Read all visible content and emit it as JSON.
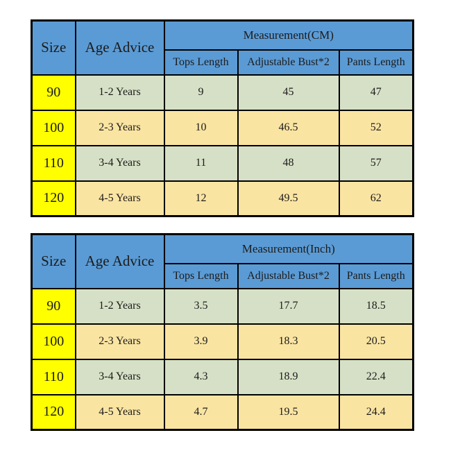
{
  "colors": {
    "header_blue": "#5b9bd5",
    "size_column_yellow": "#ffff00",
    "row_green": "#d6e0c6",
    "row_tan": "#fae4a2",
    "border_black": "#000000",
    "background": "#ffffff"
  },
  "chart_data": [
    {
      "type": "table",
      "title": "Measurement(CM)",
      "unit": "CM",
      "size_label": "Size",
      "age_label": "Age Advice",
      "columns": [
        "Tops Length",
        "Adjustable Bust*2",
        "Pants Length"
      ],
      "rows": [
        {
          "size": "90",
          "age": "1-2 Years",
          "tops": "9",
          "bust": "45",
          "pants": "47"
        },
        {
          "size": "100",
          "age": "2-3 Years",
          "tops": "10",
          "bust": "46.5",
          "pants": "52"
        },
        {
          "size": "110",
          "age": "3-4 Years",
          "tops": "11",
          "bust": "48",
          "pants": "57"
        },
        {
          "size": "120",
          "age": "4-5 Years",
          "tops": "12",
          "bust": "49.5",
          "pants": "62"
        }
      ]
    },
    {
      "type": "table",
      "title": "Measurement(Inch)",
      "unit": "Inch",
      "size_label": "Size",
      "age_label": "Age Advice",
      "columns": [
        "Tops Length",
        "Adjustable Bust*2",
        "Pants Length"
      ],
      "rows": [
        {
          "size": "90",
          "age": "1-2 Years",
          "tops": "3.5",
          "bust": "17.7",
          "pants": "18.5"
        },
        {
          "size": "100",
          "age": "2-3 Years",
          "tops": "3.9",
          "bust": "18.3",
          "pants": "20.5"
        },
        {
          "size": "110",
          "age": "3-4 Years",
          "tops": "4.3",
          "bust": "18.9",
          "pants": "22.4"
        },
        {
          "size": "120",
          "age": "4-5 Years",
          "tops": "4.7",
          "bust": "19.5",
          "pants": "24.4"
        }
      ]
    }
  ]
}
